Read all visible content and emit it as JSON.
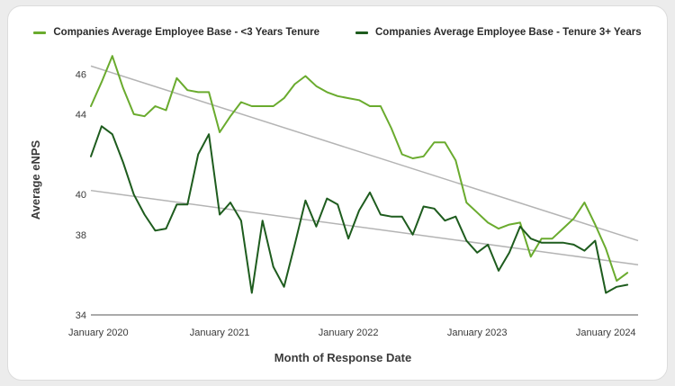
{
  "colors": {
    "series_light": "#6aab2e",
    "series_dark": "#1e5c1e",
    "trend": "#b4b4b4",
    "axis": "#555555"
  },
  "chart_data": {
    "type": "line",
    "xlabel": "Month of Response Date",
    "ylabel": "Average eNPS",
    "ylim": [
      34,
      47
    ],
    "yticks": [
      34,
      38,
      40,
      44,
      46
    ],
    "xticks": [
      "January 2020",
      "January 2021",
      "January 2022",
      "January 2023",
      "January 2024"
    ],
    "x_range_months": [
      0,
      51
    ],
    "legend_position": "top-center",
    "grid": false,
    "series": [
      {
        "name": "Companies Average Employee Base - <3 Years Tenure",
        "color": "#6aab2e",
        "values": [
          44.4,
          45.6,
          46.9,
          45.3,
          44.0,
          43.9,
          44.4,
          44.2,
          45.8,
          45.2,
          45.1,
          45.1,
          43.1,
          43.9,
          44.6,
          44.4,
          44.4,
          44.4,
          44.8,
          45.5,
          45.9,
          45.4,
          45.1,
          44.9,
          44.8,
          44.7,
          44.4,
          44.4,
          43.3,
          42.0,
          41.8,
          41.9,
          42.6,
          42.6,
          41.7,
          39.6,
          39.1,
          38.6,
          38.3,
          38.5,
          38.6,
          36.9,
          37.8,
          37.8,
          38.3,
          38.8,
          39.6,
          38.5,
          37.3,
          35.7,
          36.1
        ]
      },
      {
        "name": "Companies Average Employee Base - Tenure 3+ Years",
        "color": "#1e5c1e",
        "values": [
          41.9,
          43.4,
          43.0,
          41.6,
          40.0,
          39.0,
          38.2,
          38.3,
          39.5,
          39.5,
          42.0,
          43.0,
          39.0,
          39.6,
          38.7,
          35.1,
          38.7,
          36.4,
          35.4,
          37.5,
          39.7,
          38.4,
          39.8,
          39.5,
          37.8,
          39.2,
          40.1,
          39.0,
          38.9,
          38.9,
          38.0,
          39.4,
          39.3,
          38.7,
          38.9,
          37.7,
          37.1,
          37.5,
          36.2,
          37.1,
          38.4,
          37.8,
          37.6,
          37.6,
          37.6,
          37.5,
          37.2,
          37.7,
          35.1,
          35.4,
          35.5
        ]
      }
    ],
    "trendlines": [
      {
        "series": "Companies Average Employee Base - <3 Years Tenure",
        "start": 46.4,
        "end": 37.7
      },
      {
        "series": "Companies Average Employee Base - Tenure 3+ Years",
        "start": 40.2,
        "end": 36.5
      }
    ]
  }
}
